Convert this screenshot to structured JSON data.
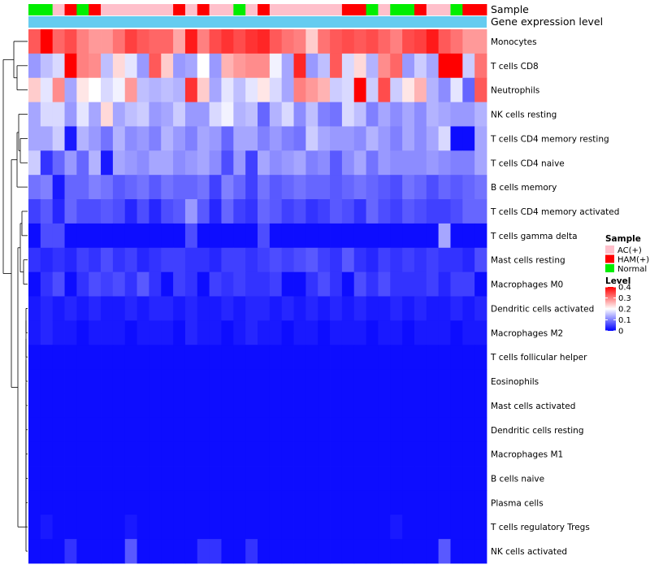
{
  "chart_data": {
    "type": "heatmap",
    "title": "",
    "annotation_labels": {
      "sample": "Sample",
      "gene": "Gene expression level"
    },
    "annotation_colors": {
      "sample_bar": {
        "AC(+)": "#ffc0cb",
        "HAM(+)": "#ff0000",
        "Normal": "#00ee00"
      },
      "gene_bar": "#66ccf0"
    },
    "samples": [
      "Normal",
      "Normal",
      "AC(+)",
      "HAM(+)",
      "Normal",
      "HAM(+)",
      "AC(+)",
      "AC(+)",
      "AC(+)",
      "AC(+)",
      "AC(+)",
      "AC(+)",
      "HAM(+)",
      "AC(+)",
      "HAM(+)",
      "AC(+)",
      "AC(+)",
      "Normal",
      "AC(+)",
      "HAM(+)",
      "AC(+)",
      "AC(+)",
      "AC(+)",
      "AC(+)",
      "AC(+)",
      "AC(+)",
      "HAM(+)",
      "HAM(+)",
      "Normal",
      "AC(+)",
      "Normal",
      "Normal",
      "HAM(+)",
      "AC(+)",
      "AC(+)",
      "Normal",
      "HAM(+)",
      "HAM(+)"
    ],
    "rows": [
      {
        "name": "Monocytes",
        "values": [
          0.33,
          0.4,
          0.32,
          0.34,
          0.3,
          0.28,
          0.28,
          0.31,
          0.35,
          0.33,
          0.32,
          0.32,
          0.27,
          0.38,
          0.3,
          0.34,
          0.36,
          0.34,
          0.36,
          0.37,
          0.33,
          0.31,
          0.3,
          0.24,
          0.31,
          0.33,
          0.34,
          0.33,
          0.34,
          0.32,
          0.3,
          0.34,
          0.35,
          0.38,
          0.33,
          0.31,
          0.28,
          0.28
        ]
      },
      {
        "name": "T cells CD8",
        "values": [
          0.12,
          0.15,
          0.17,
          0.4,
          0.3,
          0.29,
          0.15,
          0.23,
          0.18,
          0.12,
          0.33,
          0.24,
          0.12,
          0.13,
          0.2,
          0.12,
          0.26,
          0.28,
          0.29,
          0.29,
          0.19,
          0.13,
          0.37,
          0.12,
          0.15,
          0.33,
          0.17,
          0.23,
          0.14,
          0.29,
          0.32,
          0.12,
          0.16,
          0.13,
          0.4,
          0.4,
          0.16,
          0.31
        ]
      },
      {
        "name": "Neutrophils",
        "values": [
          0.24,
          0.18,
          0.29,
          0.13,
          0.22,
          0.2,
          0.17,
          0.19,
          0.28,
          0.15,
          0.14,
          0.15,
          0.14,
          0.36,
          0.24,
          0.13,
          0.18,
          0.15,
          0.18,
          0.22,
          0.17,
          0.13,
          0.3,
          0.28,
          0.26,
          0.16,
          0.17,
          0.4,
          0.16,
          0.34,
          0.16,
          0.22,
          0.26,
          0.14,
          0.11,
          0.18,
          0.08,
          0.33
        ]
      },
      {
        "name": "NK cells resting",
        "values": [
          0.13,
          0.17,
          0.17,
          0.12,
          0.18,
          0.13,
          0.23,
          0.13,
          0.15,
          0.16,
          0.12,
          0.13,
          0.16,
          0.12,
          0.12,
          0.17,
          0.19,
          0.14,
          0.15,
          0.08,
          0.14,
          0.17,
          0.11,
          0.15,
          0.1,
          0.09,
          0.17,
          0.15,
          0.1,
          0.13,
          0.11,
          0.13,
          0.11,
          0.14,
          0.13,
          0.12,
          0.12,
          0.14
        ]
      },
      {
        "name": "T cells CD4 memory resting",
        "values": [
          0.13,
          0.13,
          0.16,
          0.02,
          0.14,
          0.12,
          0.09,
          0.14,
          0.11,
          0.12,
          0.1,
          0.14,
          0.12,
          0.1,
          0.13,
          0.12,
          0.08,
          0.13,
          0.13,
          0.1,
          0.12,
          0.1,
          0.09,
          0.16,
          0.13,
          0.12,
          0.12,
          0.11,
          0.14,
          0.12,
          0.1,
          0.13,
          0.11,
          0.13,
          0.17,
          0.01,
          0.01,
          0.13
        ]
      },
      {
        "name": "T cells CD4 naive",
        "values": [
          0.16,
          0.04,
          0.08,
          0.12,
          0.08,
          0.14,
          0.02,
          0.13,
          0.12,
          0.11,
          0.13,
          0.13,
          0.11,
          0.12,
          0.13,
          0.11,
          0.06,
          0.12,
          0.05,
          0.13,
          0.11,
          0.12,
          0.13,
          0.1,
          0.11,
          0.07,
          0.11,
          0.13,
          0.09,
          0.12,
          0.11,
          0.11,
          0.11,
          0.12,
          0.11,
          0.1,
          0.1,
          0.13
        ]
      },
      {
        "name": "B cells memory",
        "values": [
          0.09,
          0.1,
          0.02,
          0.08,
          0.08,
          0.1,
          0.09,
          0.07,
          0.08,
          0.09,
          0.07,
          0.09,
          0.08,
          0.08,
          0.09,
          0.05,
          0.1,
          0.08,
          0.05,
          0.09,
          0.07,
          0.08,
          0.09,
          0.08,
          0.08,
          0.07,
          0.08,
          0.09,
          0.08,
          0.07,
          0.06,
          0.09,
          0.08,
          0.06,
          0.08,
          0.07,
          0.08,
          0.09
        ]
      },
      {
        "name": "T cells CD4 memory activated",
        "values": [
          0.05,
          0.07,
          0.03,
          0.08,
          0.06,
          0.06,
          0.07,
          0.06,
          0.03,
          0.06,
          0.03,
          0.06,
          0.07,
          0.12,
          0.07,
          0.03,
          0.08,
          0.05,
          0.04,
          0.08,
          0.07,
          0.05,
          0.06,
          0.04,
          0.05,
          0.07,
          0.06,
          0.04,
          0.08,
          0.06,
          0.05,
          0.07,
          0.06,
          0.05,
          0.05,
          0.06,
          0.08,
          0.08
        ]
      },
      {
        "name": "T cells gamma delta",
        "values": [
          0.01,
          0.06,
          0.06,
          0.01,
          0.01,
          0.01,
          0.01,
          0.01,
          0.01,
          0.01,
          0.01,
          0.01,
          0.01,
          0.06,
          0.01,
          0.01,
          0.01,
          0.01,
          0.01,
          0.06,
          0.01,
          0.01,
          0.01,
          0.01,
          0.01,
          0.01,
          0.01,
          0.01,
          0.01,
          0.01,
          0.01,
          0.01,
          0.01,
          0.01,
          0.13,
          0.01,
          0.01,
          0.01
        ]
      },
      {
        "name": "Mast cells resting",
        "values": [
          0.04,
          0.03,
          0.04,
          0.03,
          0.05,
          0.04,
          0.06,
          0.04,
          0.05,
          0.03,
          0.04,
          0.05,
          0.05,
          0.04,
          0.04,
          0.03,
          0.05,
          0.05,
          0.04,
          0.05,
          0.06,
          0.05,
          0.06,
          0.07,
          0.05,
          0.04,
          0.07,
          0.04,
          0.03,
          0.05,
          0.04,
          0.05,
          0.04,
          0.05,
          0.04,
          0.04,
          0.03,
          0.06
        ]
      },
      {
        "name": "Macrophages M0",
        "values": [
          0.01,
          0.04,
          0.06,
          0.01,
          0.04,
          0.06,
          0.05,
          0.06,
          0.04,
          0.07,
          0.04,
          0.01,
          0.05,
          0.04,
          0.01,
          0.05,
          0.04,
          0.05,
          0.04,
          0.04,
          0.05,
          0.01,
          0.01,
          0.04,
          0.06,
          0.04,
          0.01,
          0.06,
          0.04,
          0.06,
          0.04,
          0.04,
          0.04,
          0.05,
          0.03,
          0.05,
          0.05,
          0.01
        ]
      },
      {
        "name": "Dendritic cells activated",
        "values": [
          0.02,
          0.03,
          0.02,
          0.03,
          0.02,
          0.03,
          0.02,
          0.02,
          0.03,
          0.02,
          0.03,
          0.03,
          0.02,
          0.03,
          0.02,
          0.02,
          0.03,
          0.02,
          0.03,
          0.03,
          0.02,
          0.03,
          0.02,
          0.03,
          0.02,
          0.03,
          0.02,
          0.03,
          0.02,
          0.02,
          0.03,
          0.02,
          0.03,
          0.02,
          0.02,
          0.03,
          0.02,
          0.03
        ]
      },
      {
        "name": "Macrophages M2",
        "values": [
          0.02,
          0.03,
          0.02,
          0.02,
          0.01,
          0.02,
          0.02,
          0.02,
          0.01,
          0.02,
          0.02,
          0.02,
          0.01,
          0.03,
          0.02,
          0.02,
          0.01,
          0.02,
          0.03,
          0.02,
          0.02,
          0.01,
          0.02,
          0.02,
          0.01,
          0.02,
          0.02,
          0.02,
          0.01,
          0.02,
          0.02,
          0.01,
          0.02,
          0.02,
          0.02,
          0.01,
          0.02,
          0.02
        ]
      },
      {
        "name": "T cells follicular helper",
        "values": [
          0.01,
          0.01,
          0.01,
          0.01,
          0.01,
          0.01,
          0.01,
          0.01,
          0.01,
          0.01,
          0.01,
          0.01,
          0.01,
          0.01,
          0.01,
          0.01,
          0.01,
          0.01,
          0.01,
          0.01,
          0.01,
          0.01,
          0.01,
          0.01,
          0.01,
          0.01,
          0.01,
          0.01,
          0.01,
          0.01,
          0.01,
          0.01,
          0.01,
          0.01,
          0.01,
          0.01,
          0.01,
          0.01
        ]
      },
      {
        "name": "Eosinophils",
        "values": [
          0.01,
          0.01,
          0.01,
          0.01,
          0.01,
          0.01,
          0.01,
          0.01,
          0.01,
          0.01,
          0.01,
          0.01,
          0.01,
          0.01,
          0.01,
          0.01,
          0.01,
          0.01,
          0.01,
          0.01,
          0.01,
          0.01,
          0.01,
          0.01,
          0.01,
          0.01,
          0.01,
          0.01,
          0.01,
          0.01,
          0.01,
          0.01,
          0.01,
          0.01,
          0.01,
          0.01,
          0.01,
          0.01
        ]
      },
      {
        "name": "Mast cells activated",
        "values": [
          0.01,
          0.01,
          0.01,
          0.01,
          0.01,
          0.01,
          0.01,
          0.01,
          0.01,
          0.01,
          0.01,
          0.01,
          0.01,
          0.01,
          0.01,
          0.01,
          0.01,
          0.01,
          0.01,
          0.01,
          0.01,
          0.01,
          0.01,
          0.01,
          0.01,
          0.01,
          0.01,
          0.01,
          0.01,
          0.01,
          0.01,
          0.01,
          0.01,
          0.01,
          0.01,
          0.01,
          0.01,
          0.01
        ]
      },
      {
        "name": "Dendritic cells resting",
        "values": [
          0.01,
          0.01,
          0.01,
          0.01,
          0.01,
          0.01,
          0.01,
          0.01,
          0.01,
          0.01,
          0.01,
          0.01,
          0.01,
          0.01,
          0.01,
          0.01,
          0.01,
          0.01,
          0.01,
          0.01,
          0.01,
          0.01,
          0.01,
          0.01,
          0.01,
          0.01,
          0.01,
          0.01,
          0.01,
          0.01,
          0.01,
          0.01,
          0.01,
          0.01,
          0.01,
          0.01,
          0.01,
          0.01
        ]
      },
      {
        "name": "Macrophages M1",
        "values": [
          0.01,
          0.01,
          0.01,
          0.01,
          0.01,
          0.01,
          0.01,
          0.01,
          0.01,
          0.01,
          0.01,
          0.01,
          0.01,
          0.01,
          0.01,
          0.01,
          0.01,
          0.01,
          0.01,
          0.01,
          0.01,
          0.01,
          0.01,
          0.01,
          0.01,
          0.01,
          0.01,
          0.01,
          0.01,
          0.01,
          0.01,
          0.01,
          0.01,
          0.01,
          0.01,
          0.01,
          0.01,
          0.01
        ]
      },
      {
        "name": "B cells naive",
        "values": [
          0.01,
          0.01,
          0.01,
          0.01,
          0.01,
          0.01,
          0.01,
          0.01,
          0.01,
          0.01,
          0.01,
          0.01,
          0.01,
          0.01,
          0.01,
          0.01,
          0.01,
          0.01,
          0.01,
          0.01,
          0.01,
          0.01,
          0.01,
          0.01,
          0.01,
          0.01,
          0.01,
          0.01,
          0.01,
          0.01,
          0.01,
          0.01,
          0.01,
          0.01,
          0.01,
          0.01,
          0.01,
          0.01
        ]
      },
      {
        "name": "Plasma cells",
        "values": [
          0.01,
          0.01,
          0.01,
          0.01,
          0.01,
          0.01,
          0.01,
          0.01,
          0.01,
          0.01,
          0.01,
          0.01,
          0.01,
          0.01,
          0.01,
          0.01,
          0.01,
          0.01,
          0.01,
          0.01,
          0.01,
          0.01,
          0.01,
          0.01,
          0.01,
          0.01,
          0.01,
          0.01,
          0.01,
          0.01,
          0.01,
          0.01,
          0.01,
          0.01,
          0.01,
          0.01,
          0.01,
          0.01
        ]
      },
      {
        "name": "T cells regulatory  Tregs",
        "values": [
          0.01,
          0.02,
          0.01,
          0.01,
          0.01,
          0.01,
          0.01,
          0.01,
          0.02,
          0.01,
          0.01,
          0.01,
          0.01,
          0.01,
          0.01,
          0.01,
          0.01,
          0.01,
          0.01,
          0.01,
          0.01,
          0.01,
          0.01,
          0.01,
          0.01,
          0.01,
          0.01,
          0.01,
          0.01,
          0.01,
          0.02,
          0.01,
          0.01,
          0.01,
          0.01,
          0.01,
          0.01,
          0.01
        ]
      },
      {
        "name": "NK cells activated",
        "values": [
          0.01,
          0.01,
          0.01,
          0.04,
          0.01,
          0.01,
          0.01,
          0.01,
          0.07,
          0.01,
          0.01,
          0.01,
          0.01,
          0.01,
          0.04,
          0.04,
          0.01,
          0.01,
          0.04,
          0.01,
          0.01,
          0.01,
          0.01,
          0.01,
          0.01,
          0.01,
          0.01,
          0.01,
          0.01,
          0.01,
          0.01,
          0.01,
          0.01,
          0.01,
          0.07,
          0.01,
          0.01,
          0.01
        ]
      }
    ],
    "legend": {
      "sample_title": "Sample",
      "sample_items": [
        {
          "label": "AC(+)",
          "color": "#ffc0cb"
        },
        {
          "label": "HAM(+)",
          "color": "#ff0000"
        },
        {
          "label": "Normal",
          "color": "#00ee00"
        }
      ],
      "level_title": "Level",
      "level_ticks": [
        "0.4",
        "0.3",
        "0.2",
        "0.1",
        "0"
      ],
      "range": [
        0,
        0.4
      ]
    },
    "color_scale": {
      "low": "#0000ff",
      "mid": "#ffffff",
      "high": "#ff0000",
      "midpoint": 0.2
    }
  }
}
